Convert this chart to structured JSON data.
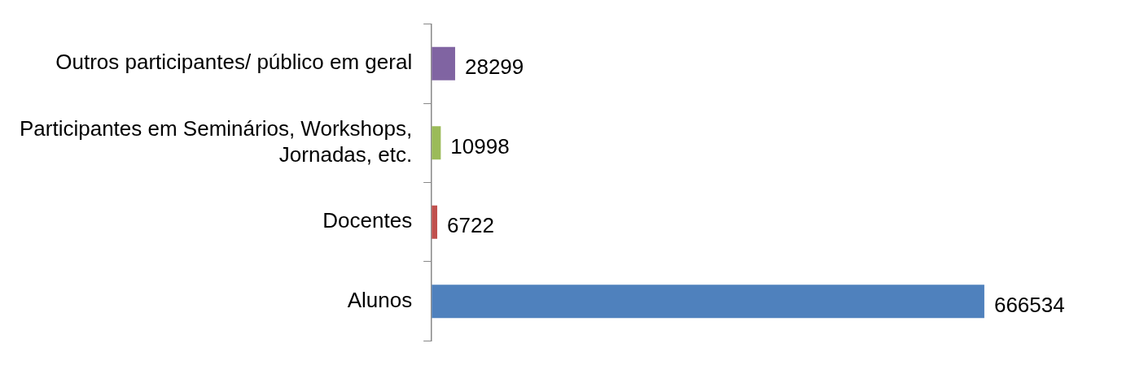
{
  "chart_data": {
    "type": "bar",
    "orientation": "horizontal",
    "categories": [
      "Outros participantes/ público em geral",
      "Participantes em Seminários, Workshops, Jornadas, etc.",
      "Docentes",
      "Alunos"
    ],
    "values": [
      28299,
      10998,
      6722,
      666534
    ],
    "colors": [
      "#8064a2",
      "#9bbb59",
      "#c0504d",
      "#4f81bd"
    ],
    "data_labels": true,
    "grid": false,
    "legend": false
  }
}
